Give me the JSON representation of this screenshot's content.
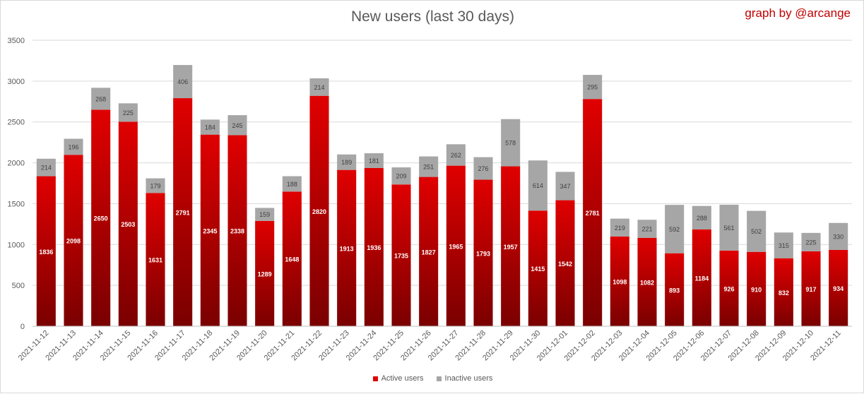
{
  "chart_data": {
    "type": "bar",
    "stacked": true,
    "title": "New users (last 30 days)",
    "credit": "graph by @arcange",
    "categories": [
      "2021-11-12",
      "2021-11-13",
      "2021-11-14",
      "2021-11-15",
      "2021-11-16",
      "2021-11-17",
      "2021-11-18",
      "2021-11-19",
      "2021-11-20",
      "2021-11-21",
      "2021-11-22",
      "2021-11-23",
      "2021-11-24",
      "2021-11-25",
      "2021-11-26",
      "2021-11-27",
      "2021-11-28",
      "2021-11-29",
      "2021-11-30",
      "2021-12-01",
      "2021-12-02",
      "2021-12-03",
      "2021-12-04",
      "2021-12-05",
      "2021-12-06",
      "2021-12-07",
      "2021-12-08",
      "2021-12-09",
      "2021-12-10",
      "2021-12-11"
    ],
    "series": [
      {
        "name": "Active users",
        "values": [
          1836,
          2098,
          2650,
          2503,
          1631,
          2791,
          2345,
          2338,
          1289,
          1648,
          2820,
          1913,
          1936,
          1735,
          1827,
          1965,
          1793,
          1957,
          1415,
          1542,
          2781,
          1098,
          1082,
          893,
          1184,
          926,
          910,
          832,
          917,
          934
        ]
      },
      {
        "name": "Inactive users",
        "values": [
          214,
          196,
          268,
          225,
          179,
          406,
          184,
          245,
          159,
          188,
          214,
          189,
          181,
          209,
          251,
          262,
          276,
          578,
          614,
          347,
          295,
          219,
          221,
          592,
          288,
          561,
          502,
          315,
          225,
          330
        ]
      }
    ],
    "ylim": [
      0,
      3500
    ],
    "yticks": [
      0,
      500,
      1000,
      1500,
      2000,
      2500,
      3000,
      3500
    ],
    "grid": true,
    "legend_position": "bottom",
    "colors": {
      "active_top": "#e00000",
      "active_bottom": "#7a0000",
      "inactive": "#a6a6a6",
      "credit_text": "#c00000",
      "grid": "#d9d9d9",
      "axis_text": "#595959"
    }
  }
}
